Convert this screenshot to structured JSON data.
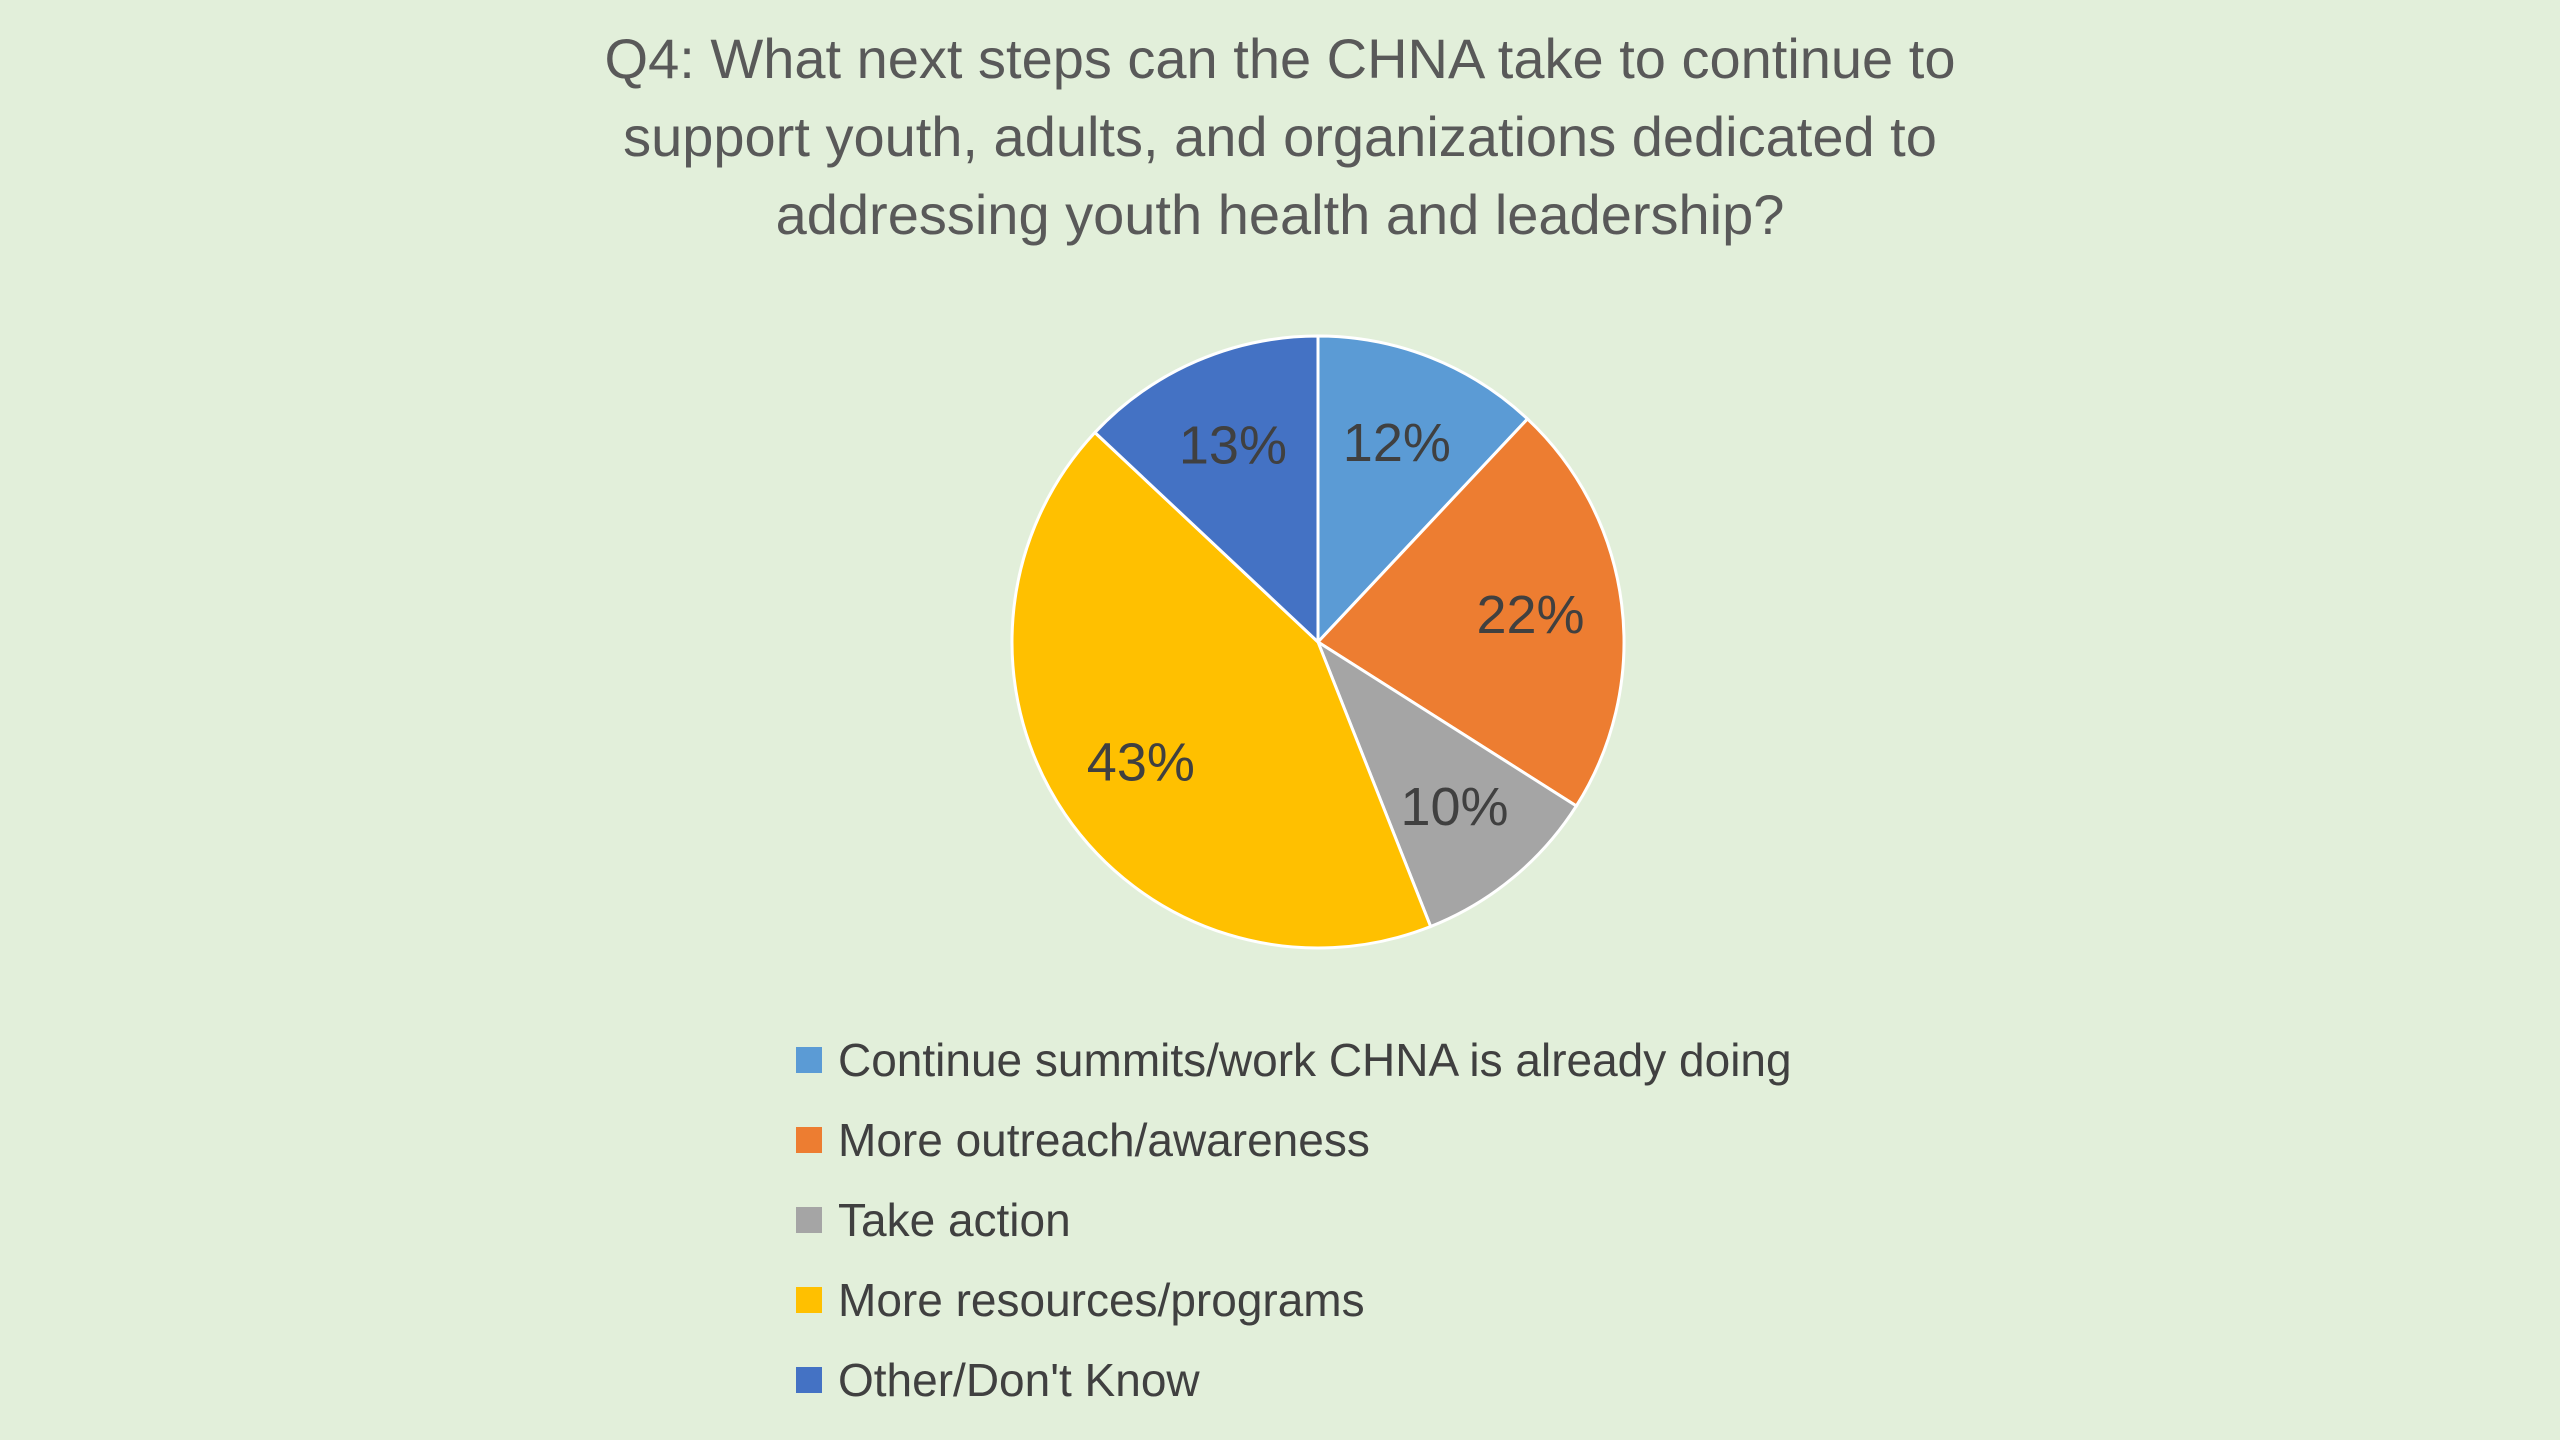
{
  "chart_data": {
    "type": "pie",
    "title": "Q4: What next steps can the CHNA take to continue to\nsupport youth, adults, and organizations dedicated to\naddressing youth health and leadership?",
    "categories": [
      "Continue summits/work CHNA is already doing",
      "More outreach/awareness",
      "Take action",
      "More resources/programs",
      "Other/Don't Know"
    ],
    "values": [
      12,
      22,
      10,
      43,
      13
    ],
    "data_labels": [
      "12%",
      "22%",
      "10%",
      "43%",
      "13%"
    ],
    "unit": "%",
    "colors": [
      "#5b9bd5",
      "#ed7d31",
      "#a5a5a5",
      "#ffc000",
      "#4472c4"
    ],
    "legend_position": "bottom"
  }
}
